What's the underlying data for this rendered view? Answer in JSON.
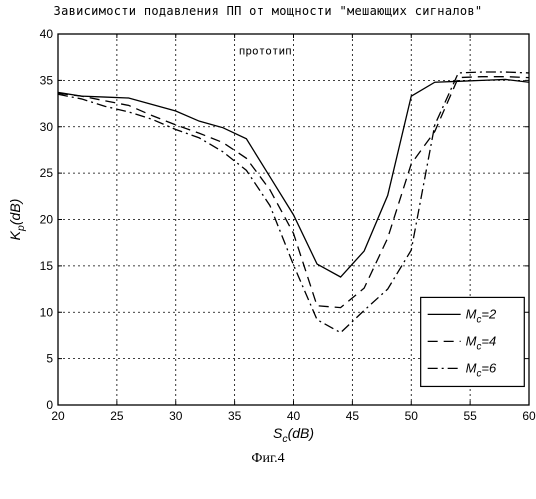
{
  "title": "Зависимости подавления ПП от мощности \"мешающих сигналов\"",
  "figure_caption": "Фиг.4",
  "chart_data": {
    "type": "line",
    "title": "Зависимости подавления ПП от мощности \"мешающих сигналов\"",
    "xlabel": {
      "main": "S",
      "sub": "c",
      "rest": "(dB)"
    },
    "ylabel": {
      "main": "K",
      "sub": "p",
      "rest": "(dB)"
    },
    "xlim": [
      20,
      60
    ],
    "ylim": [
      0,
      40
    ],
    "xticks": [
      20,
      25,
      30,
      35,
      40,
      45,
      50,
      55,
      60
    ],
    "yticks": [
      0,
      5,
      10,
      15,
      20,
      25,
      30,
      35,
      40
    ],
    "grid": true,
    "annotation": "прототип",
    "legend_position": "right",
    "series": [
      {
        "name": "M_c=2",
        "legend": {
          "main": "M",
          "sub": "c",
          "rest": "=2"
        },
        "style": "solid",
        "x": [
          20,
          22,
          24,
          26,
          28,
          30,
          32,
          34,
          36,
          38,
          40,
          42,
          44,
          46,
          48,
          50,
          52,
          54,
          56,
          58,
          60
        ],
        "y": [
          33.7,
          33.3,
          33.2,
          33.1,
          32.4,
          31.7,
          30.6,
          29.9,
          28.7,
          24.6,
          20.5,
          15.2,
          13.8,
          16.6,
          22.6,
          33.3,
          34.8,
          34.9,
          35.0,
          35.1,
          34.8
        ]
      },
      {
        "name": "M_c=4",
        "legend": {
          "main": "M",
          "sub": "c",
          "rest": "=4"
        },
        "style": "dashed",
        "x": [
          20,
          22,
          24,
          26,
          28,
          30,
          32,
          34,
          36,
          38,
          40,
          42,
          44,
          46,
          48,
          50,
          52,
          54,
          56,
          58,
          60
        ],
        "y": [
          33.6,
          33.3,
          32.8,
          32.3,
          31.2,
          30.2,
          29.3,
          28.3,
          26.6,
          23.2,
          18.5,
          10.7,
          10.5,
          12.6,
          18.0,
          26.0,
          29.5,
          35.3,
          35.4,
          35.4,
          35.3
        ]
      },
      {
        "name": "M_c=6",
        "legend": {
          "main": "M",
          "sub": "c",
          "rest": "=6"
        },
        "style": "dashdot",
        "x": [
          20,
          22,
          24,
          26,
          28,
          30,
          32,
          34,
          36,
          38,
          40,
          42,
          44,
          46,
          48,
          50,
          52,
          54,
          56,
          58,
          60
        ],
        "y": [
          33.5,
          33.0,
          32.2,
          31.6,
          30.8,
          29.7,
          28.8,
          27.3,
          25.3,
          21.5,
          15.1,
          9.2,
          7.8,
          10.2,
          12.5,
          16.7,
          30.2,
          35.8,
          35.9,
          35.9,
          35.8
        ]
      }
    ]
  }
}
